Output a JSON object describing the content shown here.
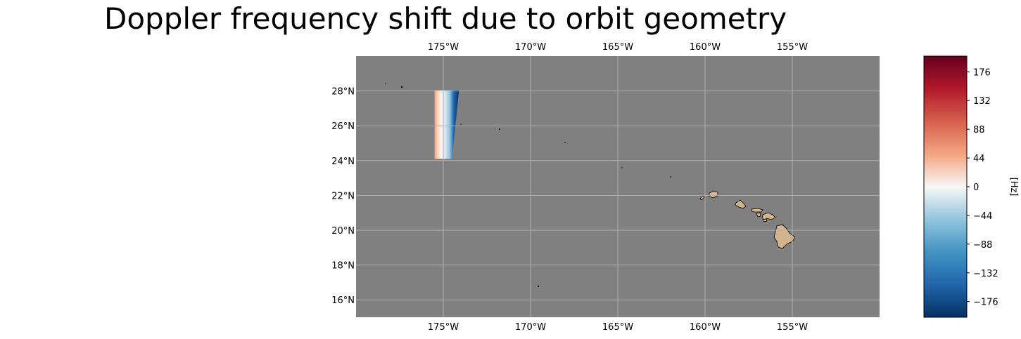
{
  "title": "Doppler frequency shift due to orbit geometry",
  "chart_data": {
    "type": "heatmap",
    "title": "Doppler frequency shift due to orbit geometry",
    "map": {
      "lon_range": [
        -180,
        -150
      ],
      "lat_range": [
        15,
        30
      ],
      "lon_ticks": [
        -175,
        -170,
        -165,
        -160,
        -155
      ],
      "lon_tick_labels": [
        "175°W",
        "170°W",
        "165°W",
        "160°W",
        "155°W"
      ],
      "lat_ticks": [
        16,
        18,
        20,
        22,
        24,
        26,
        28
      ],
      "lat_tick_labels": [
        "16°N",
        "18°N",
        "20°N",
        "22°N",
        "24°N",
        "26°N",
        "28°N"
      ],
      "gridlines": true,
      "ocean_color": "#808080",
      "land_color": "#d2b48c",
      "gridline_color": "#b0b0b0"
    },
    "swath": {
      "corners_lon_lat": [
        [
          -175.5,
          28.05
        ],
        [
          -174.1,
          28.05
        ],
        [
          -174.5,
          24.1
        ],
        [
          -175.5,
          24.1
        ]
      ],
      "doppler_min_hz": -200,
      "doppler_max_hz": 80
    },
    "colorbar": {
      "label": "[Hz]",
      "colormap": "RdBu_r",
      "range": [
        -200,
        200
      ],
      "ticks": [
        -176,
        -132,
        -88,
        -44,
        0,
        44,
        88,
        132,
        176
      ],
      "tick_labels": [
        "−176",
        "−132",
        "−88",
        "−44",
        "0",
        "44",
        "88",
        "132",
        "176"
      ]
    }
  }
}
